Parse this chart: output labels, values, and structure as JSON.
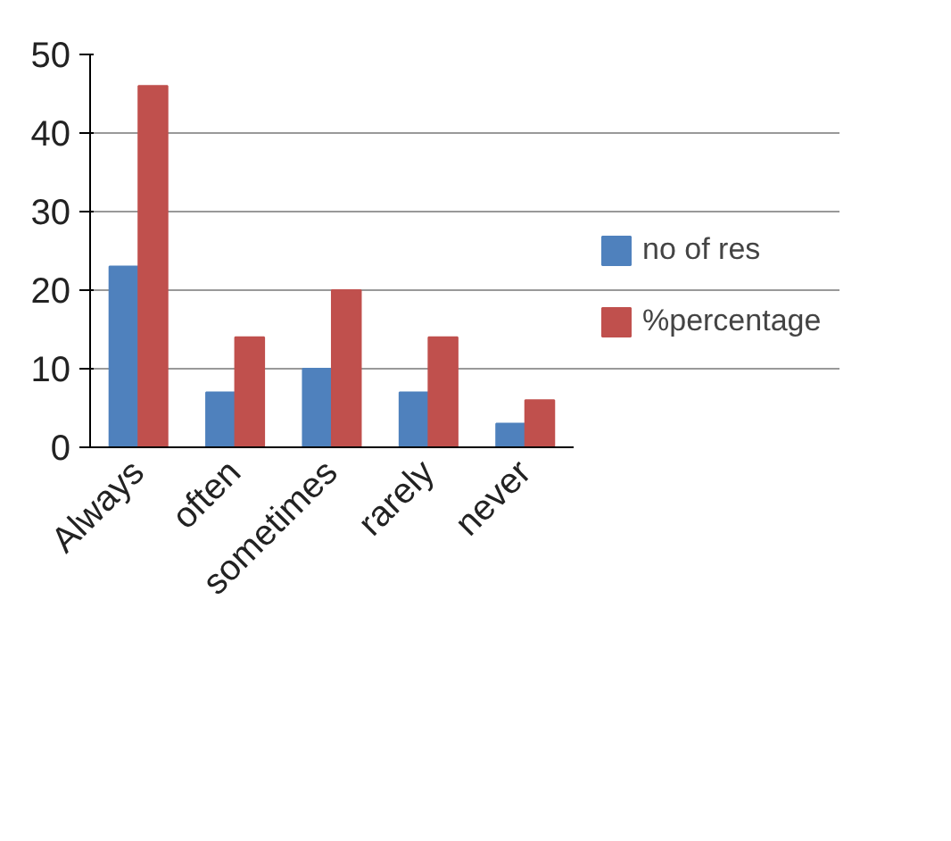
{
  "chart_data": {
    "type": "bar",
    "categories": [
      "Always",
      "often",
      "sometimes",
      "rarely",
      "never"
    ],
    "series": [
      {
        "name": "no of res",
        "color": "#4f81bd",
        "values": [
          23,
          7,
          10,
          7,
          3
        ]
      },
      {
        "name": "%percentage",
        "color": "#c0504d",
        "values": [
          46,
          14,
          20,
          14,
          6
        ]
      }
    ],
    "ylim": [
      0,
      50
    ],
    "yticks": [
      0,
      10,
      20,
      30,
      40,
      50
    ],
    "grid": "y",
    "legend": "right"
  }
}
